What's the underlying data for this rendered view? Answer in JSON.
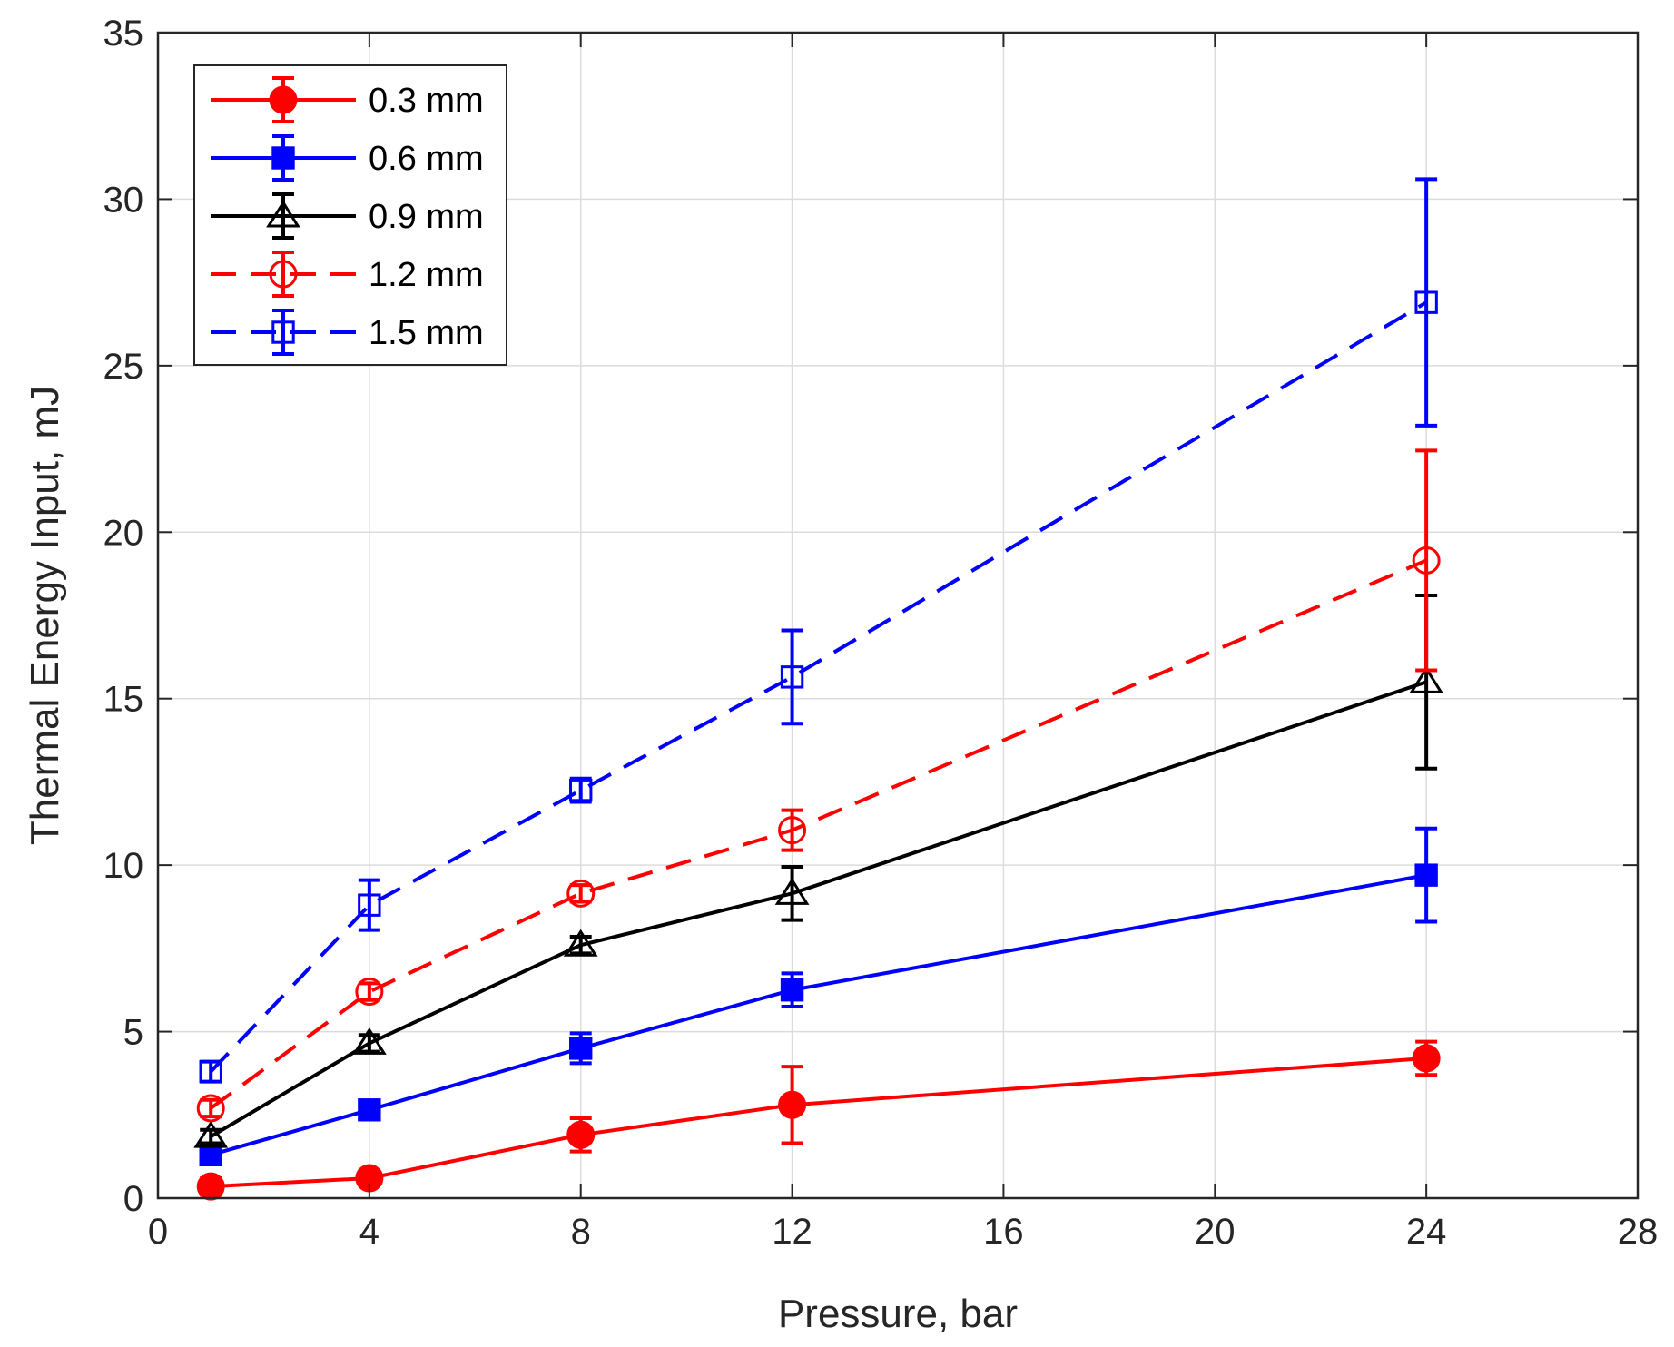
{
  "chart_data": {
    "type": "line",
    "title": "",
    "xlabel": "Pressure, bar",
    "ylabel": "Thermal Energy Input, mJ",
    "xlim": [
      0,
      28
    ],
    "ylim": [
      0,
      35
    ],
    "xticks": [
      0,
      4,
      8,
      12,
      16,
      20,
      24,
      28
    ],
    "yticks": [
      0,
      5,
      10,
      15,
      20,
      25,
      30,
      35
    ],
    "grid": true,
    "legend_position": "top-left",
    "series": [
      {
        "name": "0.3 mm",
        "color": "#ff0000",
        "line": "solid",
        "marker": "circle",
        "filled": true,
        "x": [
          1,
          4,
          8,
          12,
          24
        ],
        "y": [
          0.35,
          0.6,
          1.9,
          2.8,
          4.2
        ],
        "err": [
          0.25,
          0.25,
          0.5,
          1.15,
          0.5
        ]
      },
      {
        "name": "0.6 mm",
        "color": "#0000ff",
        "line": "solid",
        "marker": "square",
        "filled": true,
        "x": [
          1,
          4,
          8,
          12,
          24
        ],
        "y": [
          1.3,
          2.65,
          4.5,
          6.25,
          9.7
        ],
        "err": [
          0.25,
          0.25,
          0.45,
          0.5,
          1.4
        ]
      },
      {
        "name": "0.9 mm",
        "color": "#000000",
        "line": "solid",
        "marker": "triangle",
        "filled": false,
        "x": [
          1,
          4,
          8,
          12,
          24
        ],
        "y": [
          1.85,
          4.65,
          7.6,
          9.15,
          15.5
        ],
        "err": [
          0.2,
          0.25,
          0.25,
          0.8,
          2.6
        ]
      },
      {
        "name": "1.2 mm",
        "color": "#ff0000",
        "line": "dashed",
        "marker": "circle",
        "filled": false,
        "x": [
          1,
          4,
          8,
          12,
          24
        ],
        "y": [
          2.7,
          6.2,
          9.15,
          11.05,
          19.15
        ],
        "err": [
          0.25,
          0.25,
          0.25,
          0.6,
          3.3
        ]
      },
      {
        "name": "1.5 mm",
        "color": "#0000ff",
        "line": "dashed",
        "marker": "square",
        "filled": false,
        "x": [
          1,
          4,
          8,
          12,
          24
        ],
        "y": [
          3.8,
          8.8,
          12.25,
          15.65,
          26.9
        ],
        "err": [
          0.3,
          0.75,
          0.35,
          1.4,
          3.7
        ]
      }
    ]
  }
}
